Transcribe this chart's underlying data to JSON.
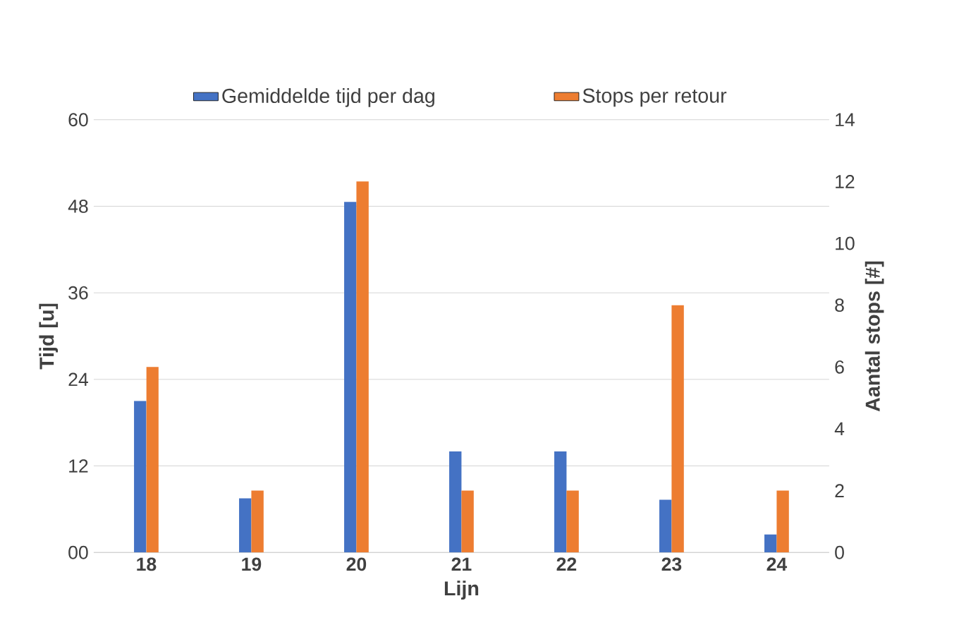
{
  "chart_data": {
    "type": "bar",
    "xlabel": "Lijn",
    "ylabel": "Tijd [u]",
    "y2label": "Aantal stops [#]",
    "categories": [
      "18",
      "19",
      "20",
      "21",
      "22",
      "23",
      "24"
    ],
    "series": [
      {
        "name": "Gemiddelde tijd per dag",
        "color": "#4472c4",
        "values": [
          21,
          7.5,
          48.6,
          14,
          14,
          7.3,
          2.5
        ]
      },
      {
        "name": "Stops per retour",
        "color": "#ed7d31",
        "axis": "y2",
        "values": [
          6,
          2,
          12,
          2,
          2,
          8,
          2
        ]
      }
    ],
    "ylim": [
      0,
      60
    ],
    "yticks": [
      {
        "value": 0,
        "label": "00"
      },
      12,
      24,
      36,
      48,
      60
    ],
    "y2lim": [
      0,
      14
    ],
    "y2ticks": [
      0,
      2,
      4,
      6,
      8,
      10,
      12,
      14
    ],
    "grid": "y",
    "legend": "top"
  }
}
